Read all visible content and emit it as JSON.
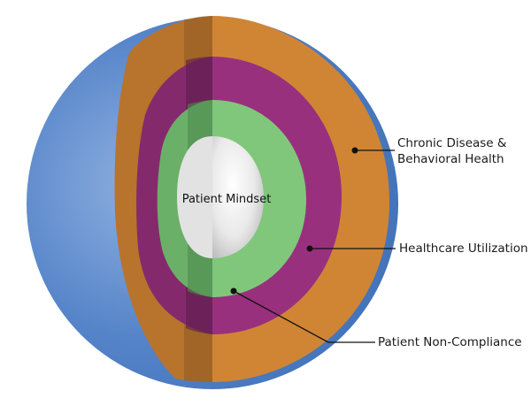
{
  "layers": [
    {
      "id": "outer",
      "color": "#4a7cc2",
      "label_lines": []
    },
    {
      "id": "chronic",
      "color": "#d08535",
      "label_lines": [
        "Chronic Disease &",
        "Behavioral Health"
      ]
    },
    {
      "id": "utilization",
      "color": "#99307e",
      "label_lines": [
        "Healthcare Utilization"
      ]
    },
    {
      "id": "noncompliance",
      "color": "#80c77c",
      "label_lines": [
        "Patient Non-Compliance"
      ]
    },
    {
      "id": "core",
      "color": "#e6e6e6",
      "label_lines": [
        "Patient Mindset"
      ]
    }
  ]
}
